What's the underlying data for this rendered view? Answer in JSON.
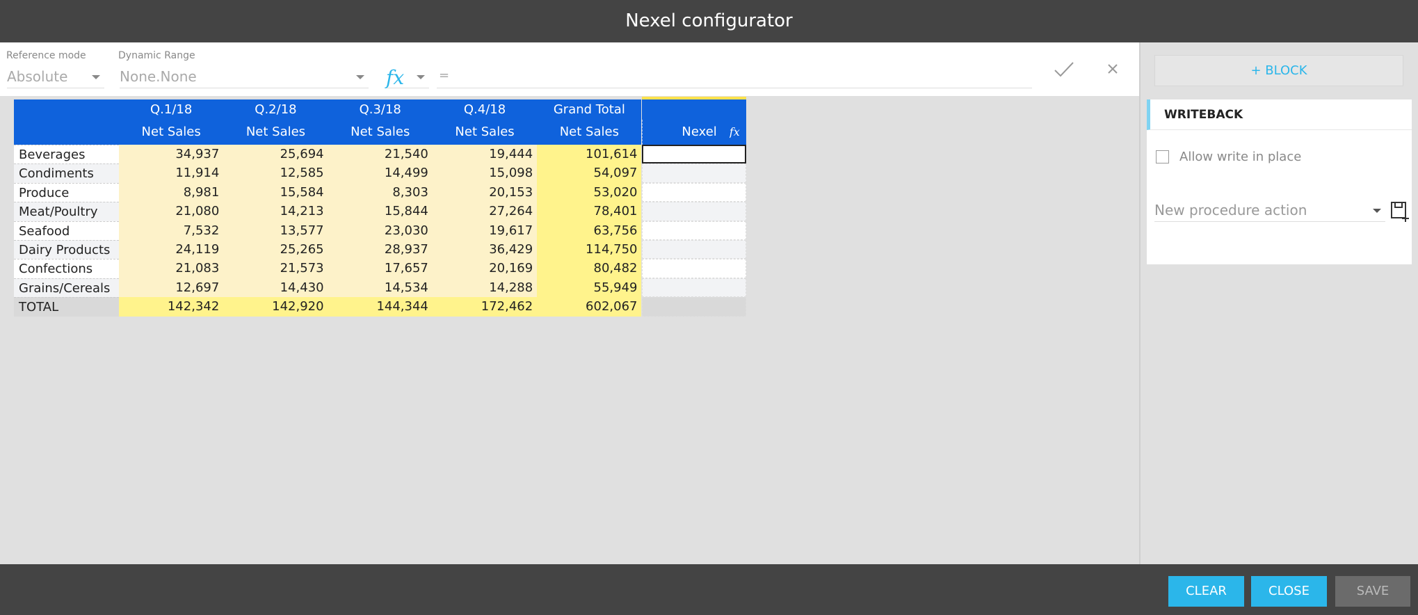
{
  "header": {
    "title": "Nexel configurator"
  },
  "toolbar": {
    "reference_mode": {
      "label": "Reference mode",
      "value": "Absolute"
    },
    "dynamic_range": {
      "label": "Dynamic Range",
      "value": "None.None"
    },
    "fx": "fx",
    "formula": "="
  },
  "table": {
    "columns": [
      {
        "period": "Q.1/18",
        "measure": "Net Sales"
      },
      {
        "period": "Q.2/18",
        "measure": "Net Sales"
      },
      {
        "period": "Q.3/18",
        "measure": "Net Sales"
      },
      {
        "period": "Q.4/18",
        "measure": "Net Sales"
      },
      {
        "period": "Grand Total",
        "measure": "Net Sales"
      }
    ],
    "nexel_column": {
      "label": "Nexel",
      "icon": "fx"
    },
    "rows": [
      {
        "label": "Beverages",
        "values": [
          "34,937",
          "25,694",
          "21,540",
          "19,444",
          "101,614"
        ]
      },
      {
        "label": "Condiments",
        "values": [
          "11,914",
          "12,585",
          "14,499",
          "15,098",
          "54,097"
        ]
      },
      {
        "label": "Produce",
        "values": [
          "8,981",
          "15,584",
          "8,303",
          "20,153",
          "53,020"
        ]
      },
      {
        "label": "Meat/Poultry",
        "values": [
          "21,080",
          "14,213",
          "15,844",
          "27,264",
          "78,401"
        ]
      },
      {
        "label": "Seafood",
        "values": [
          "7,532",
          "13,577",
          "23,030",
          "19,617",
          "63,756"
        ]
      },
      {
        "label": "Dairy Products",
        "values": [
          "24,119",
          "25,265",
          "28,937",
          "36,429",
          "114,750"
        ]
      },
      {
        "label": "Confections",
        "values": [
          "21,083",
          "21,573",
          "17,657",
          "20,169",
          "80,482"
        ]
      },
      {
        "label": "Grains/Cereals",
        "values": [
          "12,697",
          "14,430",
          "14,534",
          "14,288",
          "55,949"
        ]
      }
    ],
    "total": {
      "label": "TOTAL",
      "values": [
        "142,342",
        "142,920",
        "144,344",
        "172,462",
        "602,067"
      ]
    }
  },
  "panel": {
    "add_block": "+ BLOCK",
    "section": "WRITEBACK",
    "allow_write": "Allow write in place",
    "procedure_placeholder": "New procedure action"
  },
  "footer": {
    "clear": "CLEAR",
    "close": "CLOSE",
    "save": "SAVE"
  }
}
